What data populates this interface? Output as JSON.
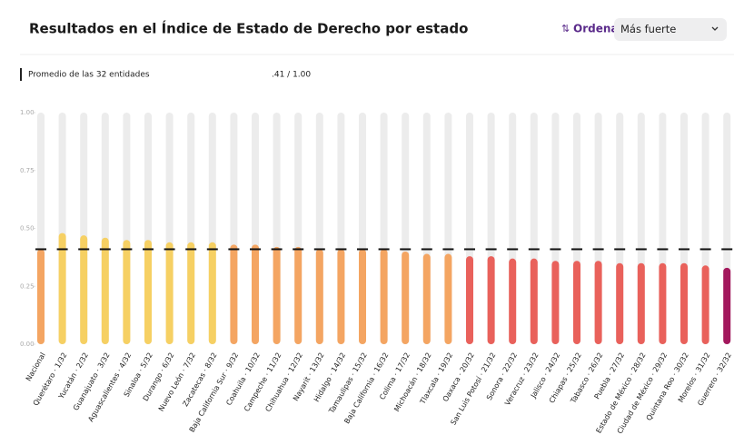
{
  "header": {
    "title": "Resultados en el Índice de Estado de Derecho por estado",
    "sort_label": "Ordena",
    "sort_option": "Más fuerte"
  },
  "chart_data": {
    "type": "bar",
    "average": {
      "value": 0.41,
      "label": ".41 / 1.00"
    },
    "average_caption": "Promedio de las 32 entidades",
    "categories": [
      "Nacional",
      "Querétaro · 1/32",
      "Yucatán · 2/32",
      "Guanajuato · 3/32",
      "Aguascalientes · 4/32",
      "Sinaloa · 5/32",
      "Durango · 6/32",
      "Nuevo León · 7/32",
      "Zacatecas · 8/32",
      "Baja California Sur · 9/32",
      "Coahuila · 10/32",
      "Campeche · 11/32",
      "Chihuahua · 12/32",
      "Nayarit · 13/32",
      "Hidalgo · 14/32",
      "Tamaulipas · 15/32",
      "Baja California · 16/32",
      "Colima · 17/32",
      "Michoacán · 18/32",
      "Tlaxcala · 19/32",
      "Oaxaca · 20/32",
      "San Luis Potosí · 21/32",
      "Sonora · 22/32",
      "Veracruz · 23/32",
      "Jalisco · 24/32",
      "Chiapas · 25/32",
      "Tabasco · 26/32",
      "Puebla · 27/32",
      "Estado de México · 28/32",
      "Ciudad de México · 29/32",
      "Quintana Roo · 30/32",
      "Morelos · 31/32",
      "Guerrero · 32/32"
    ],
    "values": [
      0.41,
      0.48,
      0.47,
      0.46,
      0.45,
      0.45,
      0.44,
      0.44,
      0.44,
      0.43,
      0.43,
      0.42,
      0.42,
      0.41,
      0.41,
      0.41,
      0.41,
      0.4,
      0.39,
      0.39,
      0.38,
      0.38,
      0.37,
      0.37,
      0.36,
      0.36,
      0.36,
      0.35,
      0.35,
      0.35,
      0.35,
      0.34,
      0.33
    ],
    "colors": [
      "#f4a562",
      "#f6d063",
      "#f6d063",
      "#f6d063",
      "#f6d063",
      "#f6d063",
      "#f6d063",
      "#f6d063",
      "#f6d063",
      "#f4a562",
      "#f4a562",
      "#f4a562",
      "#f4a562",
      "#f4a562",
      "#f4a562",
      "#f4a562",
      "#f4a562",
      "#f4a562",
      "#f4a562",
      "#f4a562",
      "#e9615b",
      "#e9615b",
      "#e9615b",
      "#e9615b",
      "#e9615b",
      "#e9615b",
      "#e9615b",
      "#e9615b",
      "#e9615b",
      "#e9615b",
      "#e9615b",
      "#e9615b",
      "#a3185d"
    ],
    "ylim": [
      0,
      1
    ],
    "yticks": [
      {
        "value": 0,
        "label": "0.00"
      },
      {
        "value": 0.25,
        "label": "0.25"
      },
      {
        "value": 0.5,
        "label": "0.50"
      },
      {
        "value": 0.75,
        "label": "0.75"
      },
      {
        "value": 1,
        "label": "1.00"
      }
    ]
  }
}
